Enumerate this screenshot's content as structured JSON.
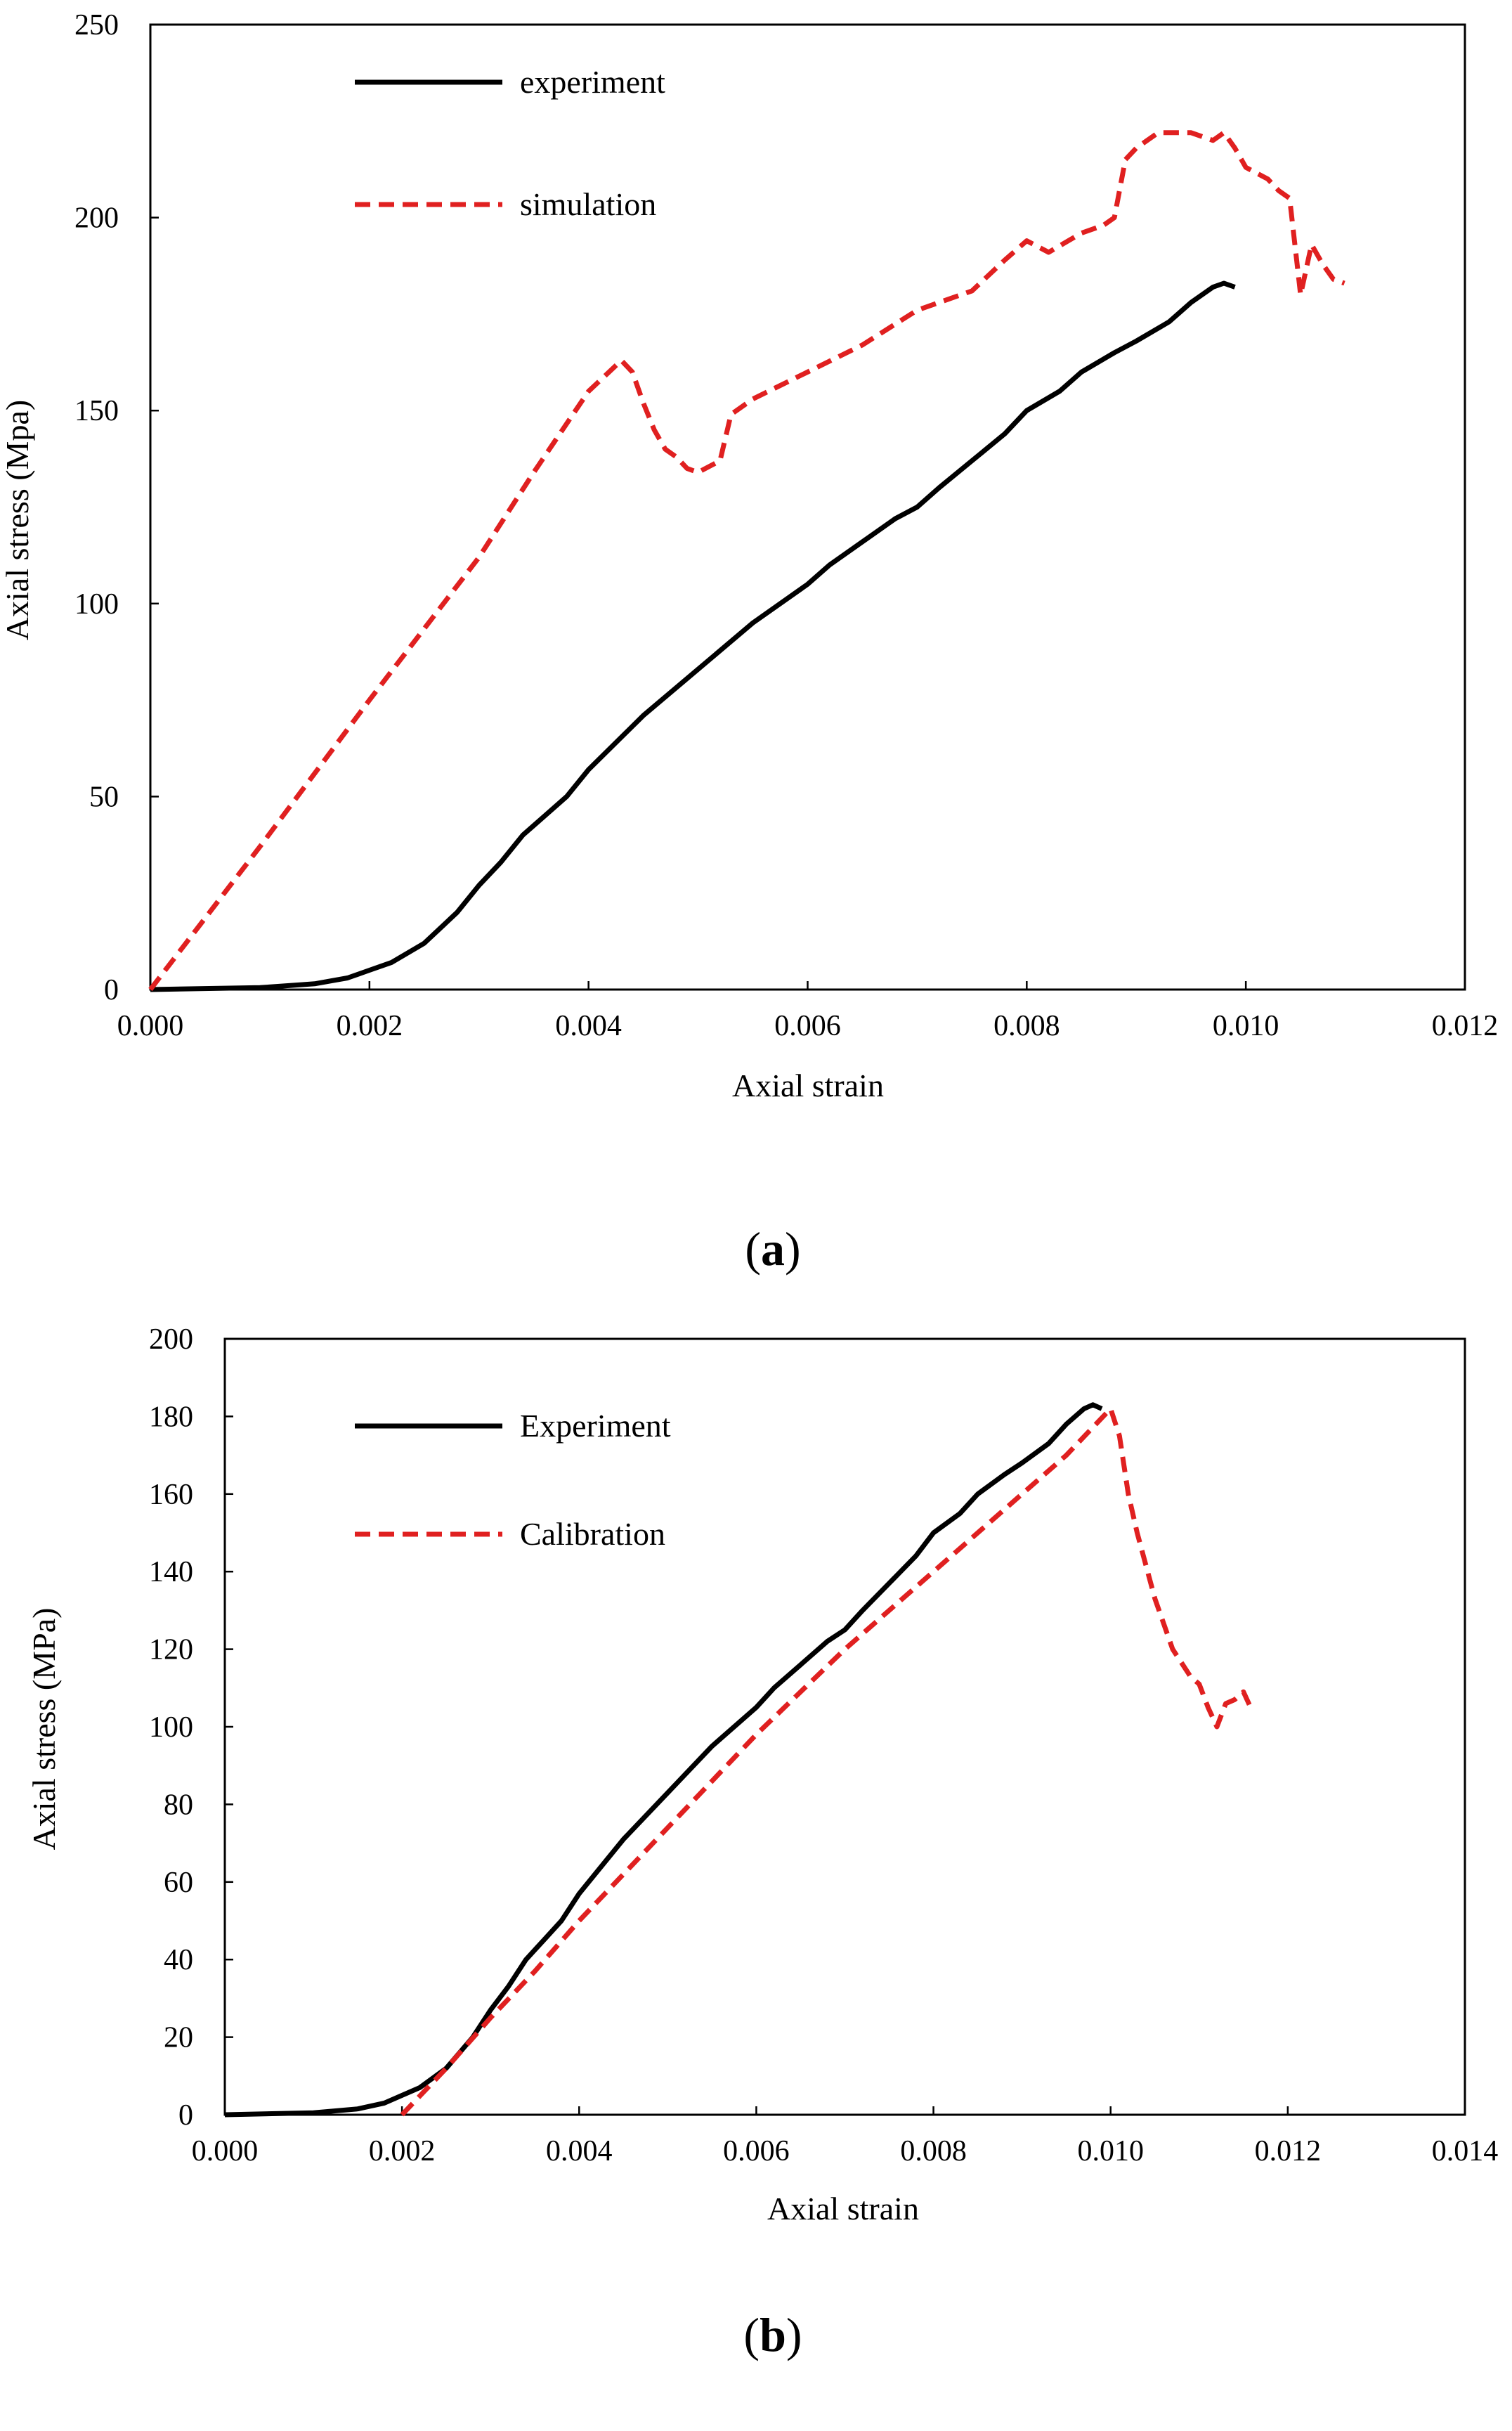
{
  "chart_data": [
    {
      "type": "line",
      "panel_label": "a",
      "xlabel": "Axial strain",
      "ylabel": "Axial stress (Mpa)",
      "xlim": [
        0,
        0.012
      ],
      "ylim": [
        0,
        250
      ],
      "xticks": [
        "0.000",
        "0.002",
        "0.004",
        "0.006",
        "0.008",
        "0.010",
        "0.012"
      ],
      "yticks": [
        "0",
        "50",
        "100",
        "150",
        "200",
        "250"
      ],
      "grid": false,
      "legend_position": "top-left",
      "series": [
        {
          "name": "experiment",
          "color": "#000000",
          "style": "solid",
          "x": [
            0.0,
            0.001,
            0.0015,
            0.0018,
            0.002,
            0.0022,
            0.0025,
            0.0028,
            0.003,
            0.0032,
            0.0034,
            0.0036,
            0.0038,
            0.004,
            0.0045,
            0.005,
            0.0055,
            0.006,
            0.0062,
            0.0065,
            0.0068,
            0.007,
            0.0072,
            0.0075,
            0.0078,
            0.008,
            0.0083,
            0.0085,
            0.0088,
            0.009,
            0.0093,
            0.0095,
            0.0097,
            0.0098,
            0.0099
          ],
          "values": [
            0,
            0.5,
            1.5,
            3,
            5,
            7,
            12,
            20,
            27,
            33,
            40,
            45,
            50,
            57,
            71,
            83,
            95,
            105,
            110,
            116,
            122,
            125,
            130,
            137,
            144,
            150,
            155,
            160,
            165,
            168,
            173,
            178,
            182,
            183,
            182
          ]
        },
        {
          "name": "simulation",
          "color": "#e02020",
          "style": "dashed",
          "x": [
            0.0,
            0.001,
            0.002,
            0.003,
            0.0035,
            0.004,
            0.0043,
            0.0044,
            0.0045,
            0.0046,
            0.0047,
            0.0048,
            0.0049,
            0.005,
            0.0052,
            0.0053,
            0.0055,
            0.006,
            0.0065,
            0.007,
            0.0075,
            0.0078,
            0.008,
            0.0082,
            0.0085,
            0.0087,
            0.0088,
            0.0089,
            0.009,
            0.0092,
            0.0095,
            0.0097,
            0.0098,
            0.0099,
            0.01,
            0.0102,
            0.0103,
            0.0104,
            0.0105,
            0.0106,
            0.0107,
            0.0108,
            0.0109
          ],
          "values": [
            0,
            37,
            75,
            112,
            134,
            155,
            163,
            160,
            152,
            145,
            140,
            138,
            135,
            134,
            137,
            149,
            153,
            160,
            167,
            176,
            181,
            189,
            194,
            191,
            196,
            198,
            200,
            215,
            218,
            222,
            222,
            220,
            222,
            218,
            213,
            210,
            207,
            205,
            180,
            193,
            188,
            184,
            183
          ]
        }
      ]
    },
    {
      "type": "line",
      "panel_label": "b",
      "xlabel": "Axial strain",
      "ylabel": "Axial stress (MPa)",
      "xlim": [
        0,
        0.014
      ],
      "ylim": [
        0,
        200
      ],
      "xticks": [
        "0.000",
        "0.002",
        "0.004",
        "0.006",
        "0.008",
        "0.010",
        "0.012",
        "0.014"
      ],
      "yticks": [
        "0",
        "20",
        "40",
        "60",
        "80",
        "100",
        "120",
        "140",
        "160",
        "180",
        "200"
      ],
      "grid": false,
      "legend_position": "top-left",
      "series": [
        {
          "name": "Experiment",
          "color": "#000000",
          "style": "solid",
          "x": [
            0.0,
            0.001,
            0.0015,
            0.0018,
            0.002,
            0.0022,
            0.0025,
            0.0028,
            0.003,
            0.0032,
            0.0034,
            0.0036,
            0.0038,
            0.004,
            0.0045,
            0.005,
            0.0055,
            0.006,
            0.0062,
            0.0065,
            0.0068,
            0.007,
            0.0072,
            0.0075,
            0.0078,
            0.008,
            0.0083,
            0.0085,
            0.0088,
            0.009,
            0.0093,
            0.0095,
            0.0097,
            0.0098,
            0.0099
          ],
          "values": [
            0,
            0.5,
            1.5,
            3,
            5,
            7,
            12,
            20,
            27,
            33,
            40,
            45,
            50,
            57,
            71,
            83,
            95,
            105,
            110,
            116,
            122,
            125,
            130,
            137,
            144,
            150,
            155,
            160,
            165,
            168,
            173,
            178,
            182,
            183,
            182
          ]
        },
        {
          "name": "Calibration",
          "color": "#e02020",
          "style": "dashed",
          "x": [
            0.002,
            0.0025,
            0.003,
            0.0035,
            0.004,
            0.005,
            0.006,
            0.007,
            0.008,
            0.009,
            0.0095,
            0.01,
            0.0101,
            0.0102,
            0.0103,
            0.0105,
            0.0107,
            0.0109,
            0.011,
            0.0111,
            0.0112,
            0.0113,
            0.0114,
            0.0115,
            0.0116
          ],
          "values": [
            0,
            12,
            25,
            37,
            50,
            74,
            98,
            120,
            140,
            160,
            170,
            182,
            175,
            160,
            150,
            133,
            120,
            113,
            111,
            105,
            100,
            106,
            107,
            109,
            104
          ]
        }
      ]
    }
  ]
}
